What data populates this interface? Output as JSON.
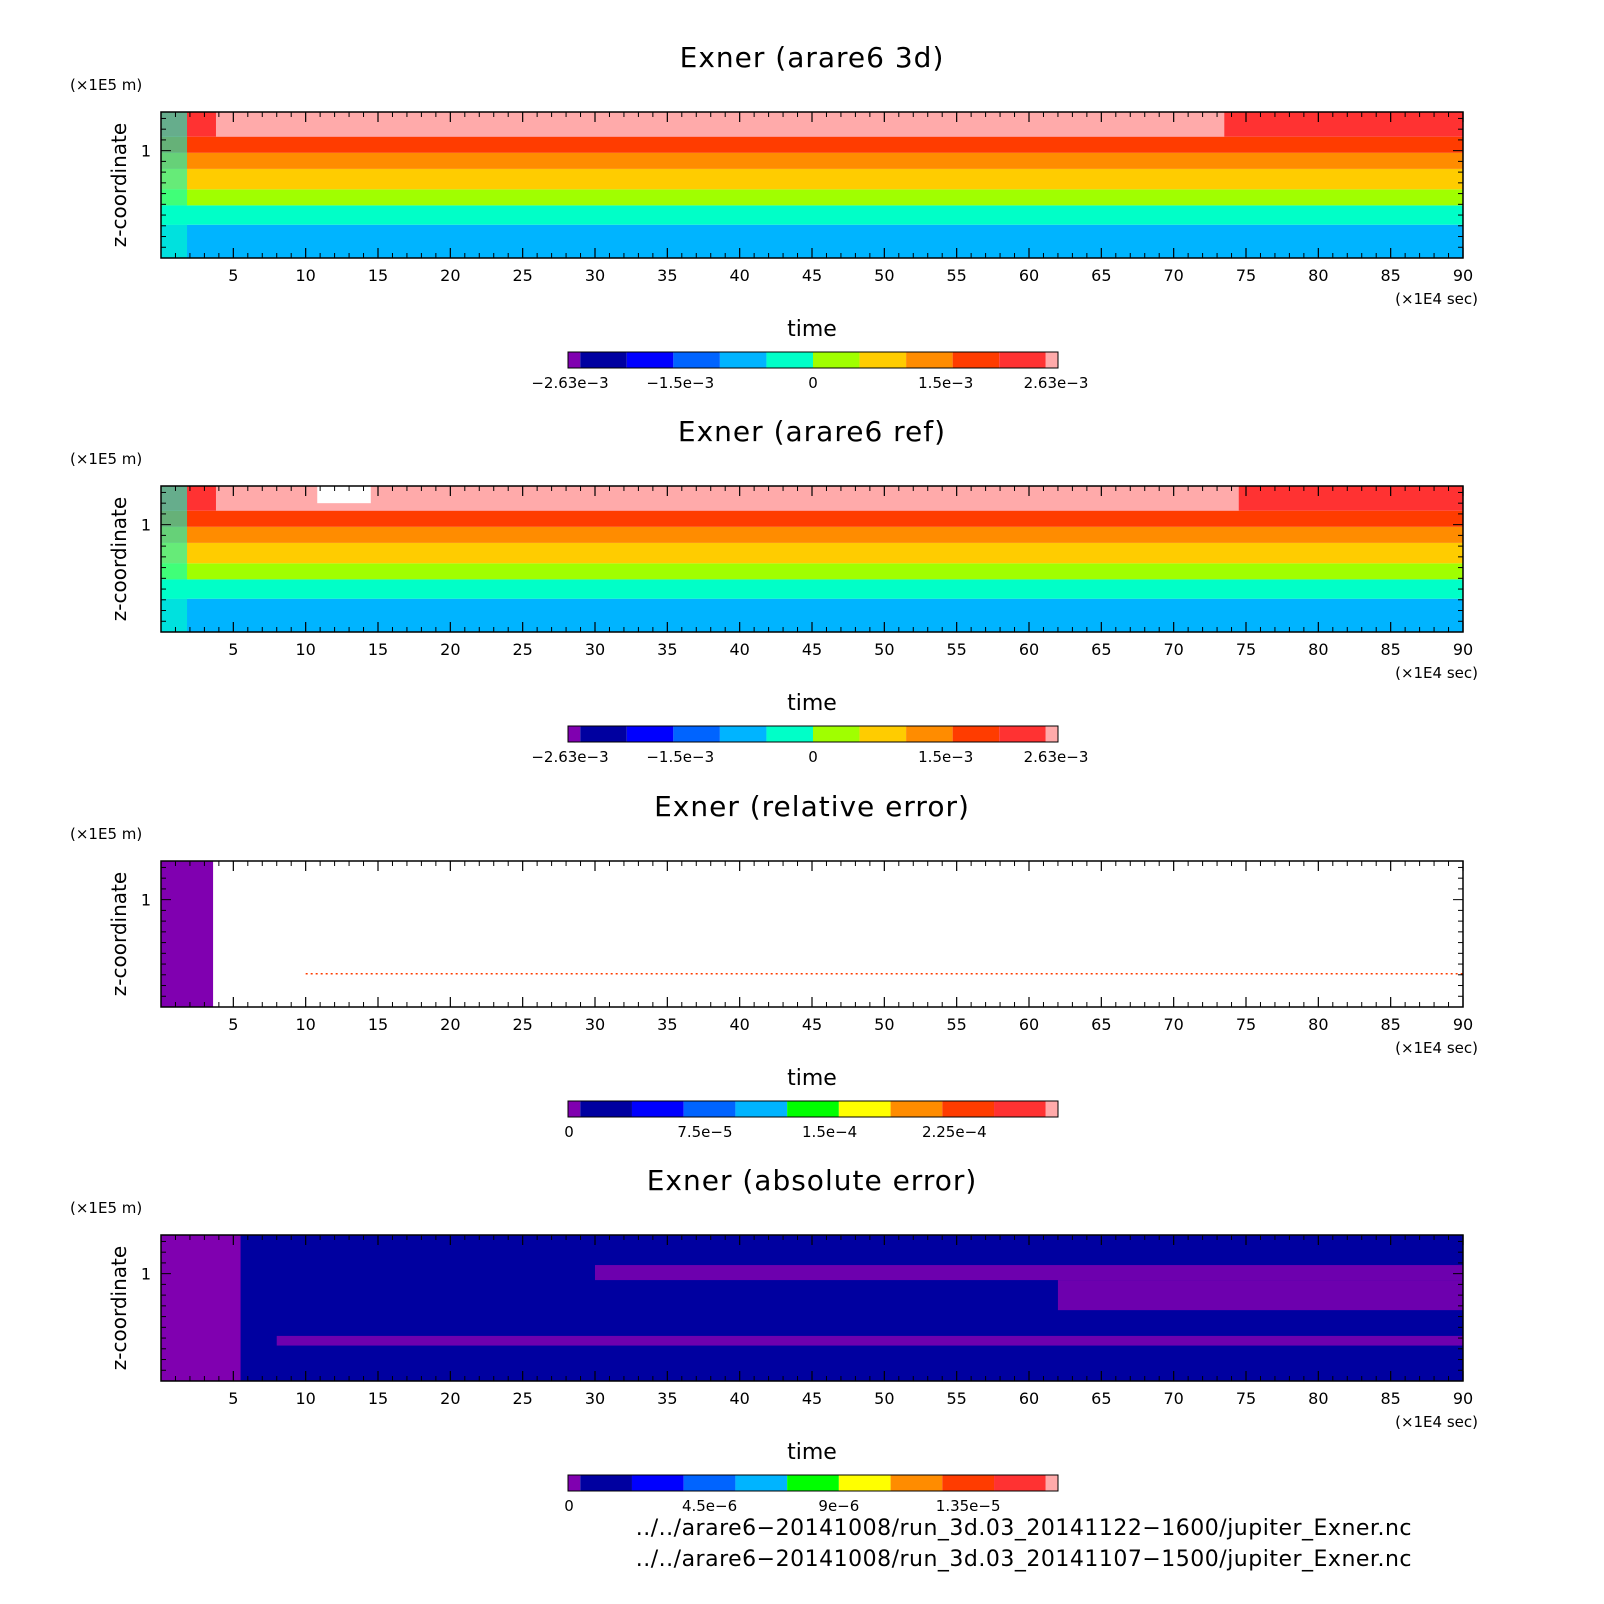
{
  "chart_data": [
    {
      "type": "heatmap",
      "title": "Exner (arare6 3d)",
      "xlabel": "time",
      "ylabel": "z-coordinate",
      "x_unit": "(×1E4 sec)",
      "y_unit": "(×1E5 m)",
      "xlim": [
        0,
        90
      ],
      "ylim": [
        0,
        1.36
      ],
      "x_ticks": [
        5,
        10,
        15,
        20,
        25,
        30,
        35,
        40,
        45,
        50,
        55,
        60,
        65,
        70,
        75,
        80,
        85,
        90
      ],
      "y_ticks": [
        1
      ],
      "colorbar": {
        "min": -0.00263,
        "max": 0.00263,
        "tick_values": [
          -0.00263,
          -0.0015,
          0,
          0.0015,
          0.00263
        ],
        "tick_labels": [
          "−2.63e−3",
          "−1.5e−3",
          "0",
          "1.5e−3",
          "2.63e−3"
        ],
        "colors": [
          "#8000b0",
          "#0000a0",
          "#0000ff",
          "#0064ff",
          "#00b4ff",
          "#00ffc8",
          "#a0ff00",
          "#ffcc00",
          "#ff8c00",
          "#ff3c00",
          "#ff3232",
          "#ffaaaa"
        ]
      },
      "bands": [
        {
          "z": [
            0,
            0.31
          ],
          "color": "#00b4ff"
        },
        {
          "z": [
            0.31,
            0.49
          ],
          "color": "#00ffc8"
        },
        {
          "z": [
            0.49,
            0.64
          ],
          "color": "#a0ff00"
        },
        {
          "z": [
            0.64,
            0.83
          ],
          "color": "#ffcc00"
        },
        {
          "z": [
            0.83,
            0.98
          ],
          "color": "#ff8c00"
        },
        {
          "z": [
            0.98,
            1.13
          ],
          "color": "#ff3c00"
        },
        {
          "z": [
            1.13,
            1.36
          ],
          "color": "#ff3232"
        }
      ],
      "top_patch": {
        "x": [
          3.8,
          73.5
        ],
        "z": [
          1.13,
          1.36
        ],
        "color": "#ffaaaa"
      }
    },
    {
      "type": "heatmap",
      "title": "Exner (arare6 ref)",
      "xlabel": "time",
      "ylabel": "z-coordinate",
      "x_unit": "(×1E4 sec)",
      "y_unit": "(×1E5 m)",
      "xlim": [
        0,
        90
      ],
      "ylim": [
        0,
        1.36
      ],
      "x_ticks": [
        5,
        10,
        15,
        20,
        25,
        30,
        35,
        40,
        45,
        50,
        55,
        60,
        65,
        70,
        75,
        80,
        85,
        90
      ],
      "y_ticks": [
        1
      ],
      "colorbar": {
        "min": -0.00263,
        "max": 0.00263,
        "tick_values": [
          -0.00263,
          -0.0015,
          0,
          0.0015,
          0.00263
        ],
        "tick_labels": [
          "−2.63e−3",
          "−1.5e−3",
          "0",
          "1.5e−3",
          "2.63e−3"
        ],
        "colors": [
          "#8000b0",
          "#0000a0",
          "#0000ff",
          "#0064ff",
          "#00b4ff",
          "#00ffc8",
          "#a0ff00",
          "#ffcc00",
          "#ff8c00",
          "#ff3c00",
          "#ff3232",
          "#ffaaaa"
        ]
      },
      "bands": [
        {
          "z": [
            0,
            0.31
          ],
          "color": "#00b4ff"
        },
        {
          "z": [
            0.31,
            0.49
          ],
          "color": "#00ffc8"
        },
        {
          "z": [
            0.49,
            0.64
          ],
          "color": "#a0ff00"
        },
        {
          "z": [
            0.64,
            0.83
          ],
          "color": "#ffcc00"
        },
        {
          "z": [
            0.83,
            0.98
          ],
          "color": "#ff8c00"
        },
        {
          "z": [
            0.98,
            1.13
          ],
          "color": "#ff3c00"
        },
        {
          "z": [
            1.13,
            1.36
          ],
          "color": "#ff3232"
        }
      ],
      "top_patch": {
        "x": [
          3.8,
          74.5
        ],
        "z": [
          1.13,
          1.36
        ],
        "color": "#ffaaaa"
      },
      "white_patch": {
        "x": [
          10.8,
          14.5
        ],
        "z": [
          1.2,
          1.36
        ],
        "color": "#ffffff"
      }
    },
    {
      "type": "heatmap",
      "title": "Exner (relative error)",
      "xlabel": "time",
      "ylabel": "z-coordinate",
      "x_unit": "(×1E4 sec)",
      "y_unit": "(×1E5 m)",
      "xlim": [
        0,
        90
      ],
      "ylim": [
        0,
        1.36
      ],
      "x_ticks": [
        5,
        10,
        15,
        20,
        25,
        30,
        35,
        40,
        45,
        50,
        55,
        60,
        65,
        70,
        75,
        80,
        85,
        90
      ],
      "y_ticks": [
        1
      ],
      "colorbar": {
        "min": 0,
        "max": 0.00028,
        "tick_values": [
          0,
          7.5e-05,
          0.00015,
          0.000225
        ],
        "tick_labels": [
          "0",
          "7.5e−5",
          "1.5e−4",
          "2.25e−4"
        ],
        "colors": [
          "#8000b0",
          "#0000a0",
          "#0000ff",
          "#0064ff",
          "#00b4ff",
          "#00ff00",
          "#ffff00",
          "#ff8c00",
          "#ff3c00",
          "#ff3232",
          "#ffaaaa"
        ]
      },
      "bands": [
        {
          "z": [
            0,
            1.36
          ],
          "color": "#ffffff"
        }
      ],
      "left_patch": {
        "x": [
          0,
          3.6
        ],
        "z": [
          0,
          1.36
        ],
        "color": "#8000b0"
      },
      "error_line": {
        "z": 0.31,
        "x": [
          10,
          90
        ],
        "color": "#ff3c00"
      }
    },
    {
      "type": "heatmap",
      "title": "Exner (absolute error)",
      "xlabel": "time",
      "ylabel": "z-coordinate",
      "x_unit": "(×1E4 sec)",
      "y_unit": "(×1E5 m)",
      "xlim": [
        0,
        90
      ],
      "ylim": [
        0,
        1.36
      ],
      "x_ticks": [
        5,
        10,
        15,
        20,
        25,
        30,
        35,
        40,
        45,
        50,
        55,
        60,
        65,
        70,
        75,
        80,
        85,
        90
      ],
      "y_ticks": [
        1
      ],
      "colorbar": {
        "min": 0,
        "max": 1.62e-05,
        "tick_values": [
          0,
          4.5e-06,
          9e-06,
          1.35e-05
        ],
        "tick_labels": [
          "0",
          "4.5e−6",
          "9e−6",
          "1.35e−5"
        ],
        "colors": [
          "#8000b0",
          "#0000a0",
          "#0000ff",
          "#0064ff",
          "#00b4ff",
          "#00ff00",
          "#ffff00",
          "#ff8c00",
          "#ff3c00",
          "#ff3232",
          "#ffaaaa"
        ]
      },
      "bands": [
        {
          "z": [
            0,
            1.36
          ],
          "color": "#0000a0"
        }
      ],
      "left_patch": {
        "x": [
          0,
          5.5
        ],
        "z": [
          0,
          1.36
        ],
        "color": "#8000b0"
      },
      "purple_streaks": [
        {
          "z": [
            0.33,
            0.42
          ],
          "x": [
            8,
            90
          ]
        },
        {
          "z": [
            0.66,
            0.94
          ],
          "x": [
            62,
            90
          ]
        },
        {
          "z": [
            0.94,
            1.08
          ],
          "x": [
            30,
            90
          ]
        }
      ]
    }
  ],
  "footer": {
    "line1": "../../arare6−20141008/run_3d.03_20141122−1600/jupiter_Exner.nc",
    "line2": "../../arare6−20141008/run_3d.03_20141107−1500/jupiter_Exner.nc"
  }
}
